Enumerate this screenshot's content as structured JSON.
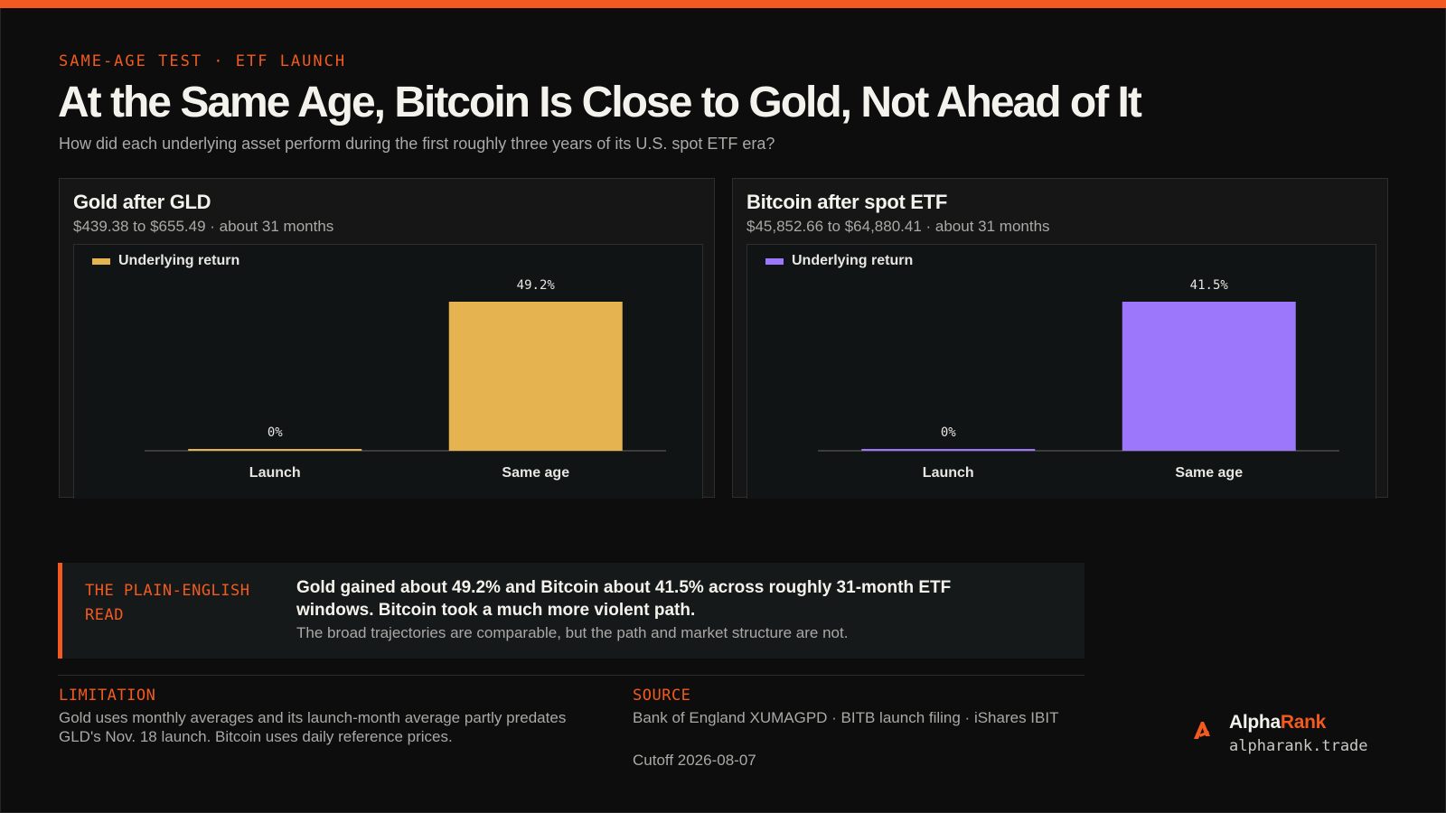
{
  "header": {
    "eyebrow": "SAME-AGE TEST · ETF LAUNCH",
    "title": "At the Same Age, Bitcoin Is Close to Gold, Not Ahead of It",
    "subtitle": "How did each underlying asset perform during the first roughly three years of its U.S. spot ETF era?"
  },
  "colors": {
    "accent": "#f25a1f",
    "gold": "#e5b350",
    "bitcoin": "#9c77fb"
  },
  "chart_data": [
    {
      "type": "bar",
      "title": "Gold after GLD",
      "subtitle": "$439.38 to $655.49 · about 31 months",
      "categories": [
        "Launch",
        "Same age"
      ],
      "series": [
        {
          "name": "Underlying return",
          "values": [
            0,
            49.2
          ],
          "color": "#e5b350"
        }
      ],
      "data_labels": [
        "0%",
        "49.2%"
      ],
      "ylim": [
        0,
        49.2
      ],
      "grid": false,
      "legend": "top-left"
    },
    {
      "type": "bar",
      "title": "Bitcoin after spot ETF",
      "subtitle": "$45,852.66 to $64,880.41 · about 31 months",
      "categories": [
        "Launch",
        "Same age"
      ],
      "series": [
        {
          "name": "Underlying return",
          "values": [
            0,
            41.5
          ],
          "color": "#9c77fb"
        }
      ],
      "data_labels": [
        "0%",
        "41.5%"
      ],
      "ylim": [
        0,
        41.5
      ],
      "grid": false,
      "legend": "top-left"
    }
  ],
  "callout": {
    "label": "THE PLAIN-ENGLISH READ",
    "main": "Gold gained about 49.2% and Bitcoin about 41.5% across roughly 31-month ETF windows. Bitcoin took a much more violent path.",
    "note": "The broad trajectories are comparable, but the path and market structure are not."
  },
  "limitation": {
    "label": "LIMITATION",
    "text": "Gold uses monthly averages and its launch-month average partly predates GLD's Nov. 18 launch. Bitcoin uses daily reference prices."
  },
  "source": {
    "label": "SOURCE",
    "text": "Bank of England XUMAGPD · BITB launch filing · iShares IBIT",
    "cutoff": "Cutoff 2026-08-07"
  },
  "brand": {
    "name_part1": "Alpha",
    "name_part2": "Rank",
    "url": "alpharank.trade",
    "icon": "alpharank-logo-icon"
  }
}
